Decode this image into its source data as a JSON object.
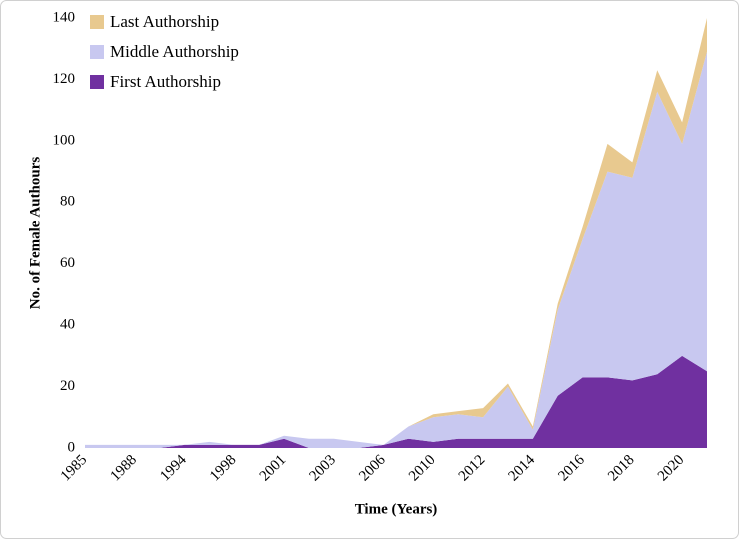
{
  "chart_data": {
    "type": "stacked_area",
    "x_label": "Time (Years)",
    "y_label": "No. of Female Authours",
    "categories": [
      "1985",
      null,
      "1988",
      null,
      "1994",
      null,
      "1998",
      null,
      "2001",
      null,
      "2003",
      null,
      "2006",
      null,
      "2010",
      null,
      "2012",
      null,
      "2014",
      null,
      "2016",
      null,
      "2018",
      null,
      "2020",
      null
    ],
    "series": [
      {
        "name": "Last Authorship",
        "color": "#e8c98f",
        "values": [
          0,
          0,
          0,
          0,
          0,
          0,
          0,
          0,
          0,
          0,
          0,
          0,
          0,
          0,
          1,
          1,
          3,
          1,
          1,
          2,
          4,
          9,
          5,
          7,
          7,
          11
        ]
      },
      {
        "name": "Middle Authorship",
        "color": "#c8c8f0",
        "values": [
          1,
          1,
          1,
          1,
          0,
          1,
          0,
          0,
          1,
          3,
          3,
          2,
          0,
          4,
          8,
          8,
          7,
          17,
          3,
          28,
          45,
          67,
          66,
          92,
          69,
          104
        ]
      },
      {
        "name": "First Authorship",
        "color": "#7030a0",
        "values": [
          0,
          0,
          0,
          0,
          1,
          1,
          1,
          1,
          3,
          0,
          0,
          0,
          1,
          3,
          2,
          3,
          3,
          3,
          3,
          17,
          23,
          23,
          22,
          24,
          30,
          25
        ]
      }
    ],
    "ylim": [
      0,
      140
    ],
    "yticks": [
      0,
      20,
      40,
      60,
      80,
      100,
      120,
      140
    ],
    "legend": "top-left"
  }
}
